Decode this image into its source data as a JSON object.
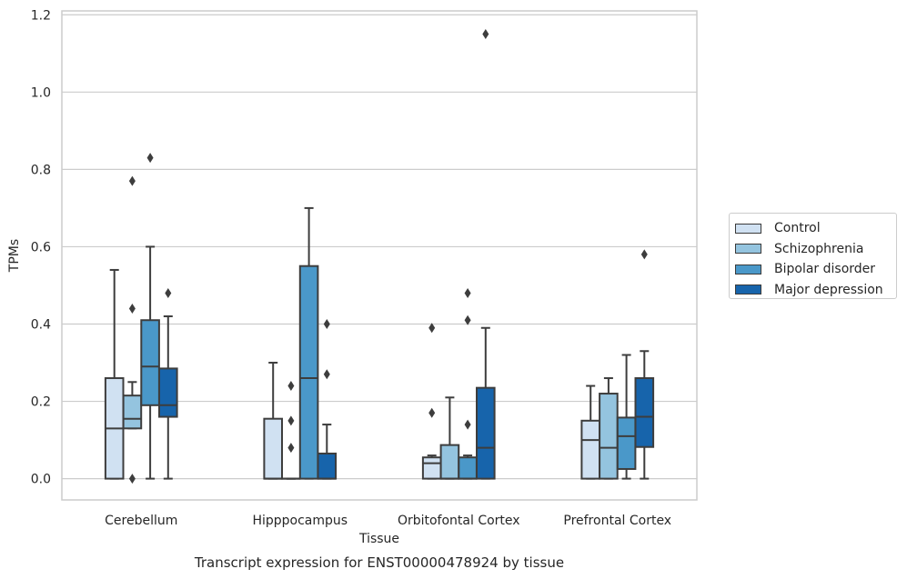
{
  "chart_data": {
    "type": "boxplot",
    "xlabel": "Tissue",
    "ylabel": "TPMs",
    "caption": "Transcript expression for ENST00000478924 by tissue",
    "ylim": [
      -0.055,
      1.21
    ],
    "yticks": [
      "0.0",
      "0.2",
      "0.4",
      "0.6",
      "0.8",
      "1.0",
      "1.2"
    ],
    "grid": true,
    "legend_position": "right",
    "categories": [
      "Cerebellum",
      "Hipppocampus",
      "Orbitofontal Cortex",
      "Prefrontal Cortex"
    ],
    "series": [
      {
        "name": "Control",
        "color": "#d0e1f2",
        "boxes": [
          {
            "whislo": 0.0,
            "q1": 0.0,
            "med": 0.13,
            "q3": 0.26,
            "whishi": 0.54,
            "fliers": []
          },
          {
            "whislo": 0.0,
            "q1": 0.0,
            "med": 0.0,
            "q3": 0.155,
            "whishi": 0.3,
            "fliers": []
          },
          {
            "whislo": 0.0,
            "q1": 0.0,
            "med": 0.04,
            "q3": 0.055,
            "whishi": 0.06,
            "fliers": [
              0.17,
              0.39
            ]
          },
          {
            "whislo": 0.0,
            "q1": 0.0,
            "med": 0.1,
            "q3": 0.15,
            "whishi": 0.24,
            "fliers": []
          }
        ]
      },
      {
        "name": "Schizophrenia",
        "color": "#94c4df",
        "boxes": [
          {
            "whislo": 0.13,
            "q1": 0.13,
            "med": 0.155,
            "q3": 0.215,
            "whishi": 0.25,
            "fliers": [
              0.0,
              0.44,
              0.77
            ]
          },
          {
            "whislo": 0.0,
            "q1": 0.0,
            "med": 0.0,
            "q3": 0.0,
            "whishi": 0.0,
            "fliers": [
              0.08,
              0.15,
              0.24
            ]
          },
          {
            "whislo": 0.0,
            "q1": 0.0,
            "med": 0.0,
            "q3": 0.087,
            "whishi": 0.21,
            "fliers": []
          },
          {
            "whislo": 0.0,
            "q1": 0.0,
            "med": 0.08,
            "q3": 0.22,
            "whishi": 0.26,
            "fliers": []
          }
        ]
      },
      {
        "name": "Bipolar disorder",
        "color": "#4a98c9",
        "boxes": [
          {
            "whislo": 0.0,
            "q1": 0.19,
            "med": 0.29,
            "q3": 0.41,
            "whishi": 0.6,
            "fliers": [
              0.83
            ]
          },
          {
            "whislo": 0.0,
            "q1": 0.0,
            "med": 0.26,
            "q3": 0.55,
            "whishi": 0.7,
            "fliers": []
          },
          {
            "whislo": 0.0,
            "q1": 0.0,
            "med": 0.0,
            "q3": 0.055,
            "whishi": 0.06,
            "fliers": [
              0.14,
              0.41,
              0.48
            ]
          },
          {
            "whislo": 0.0,
            "q1": 0.025,
            "med": 0.11,
            "q3": 0.158,
            "whishi": 0.32,
            "fliers": []
          }
        ]
      },
      {
        "name": "Major depression",
        "color": "#1764ab",
        "boxes": [
          {
            "whislo": 0.0,
            "q1": 0.16,
            "med": 0.19,
            "q3": 0.285,
            "whishi": 0.42,
            "fliers": [
              0.48
            ]
          },
          {
            "whislo": 0.0,
            "q1": 0.0,
            "med": 0.0,
            "q3": 0.065,
            "whishi": 0.14,
            "fliers": [
              0.27,
              0.4
            ]
          },
          {
            "whislo": 0.0,
            "q1": 0.0,
            "med": 0.08,
            "q3": 0.235,
            "whishi": 0.39,
            "fliers": [
              1.15
            ]
          },
          {
            "whislo": 0.0,
            "q1": 0.082,
            "med": 0.16,
            "q3": 0.26,
            "whishi": 0.33,
            "fliers": [
              0.58
            ]
          }
        ]
      }
    ]
  }
}
